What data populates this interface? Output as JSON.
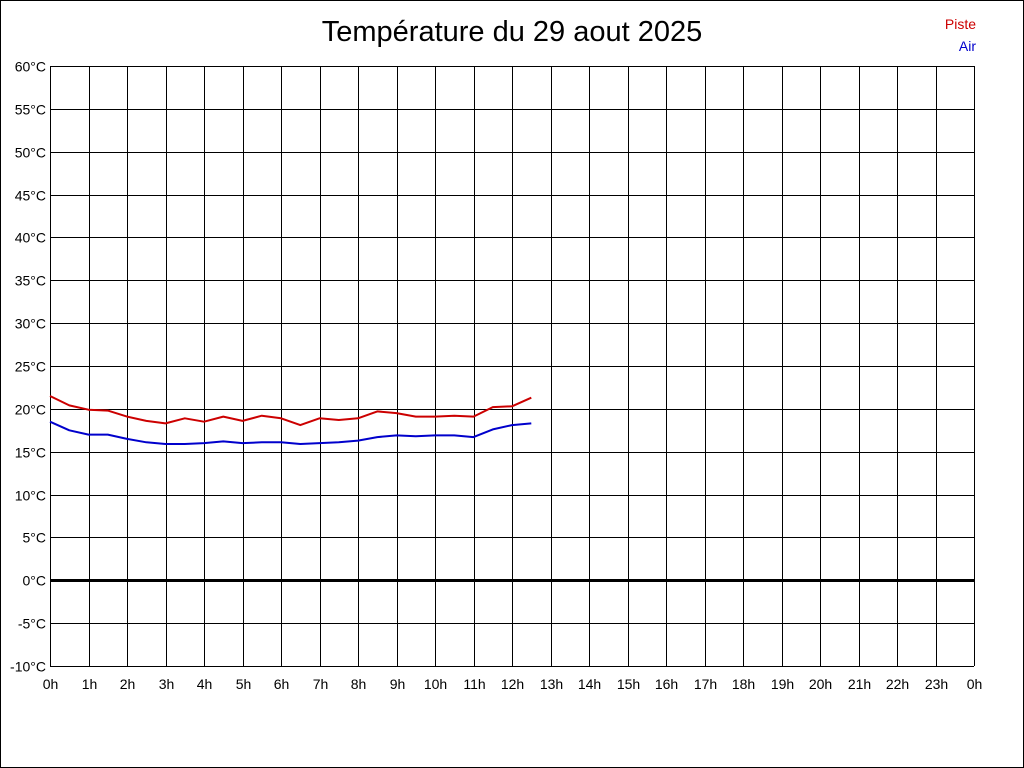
{
  "chart_data": {
    "type": "line",
    "title": "Température du 29 aout 2025",
    "xlabel": "",
    "ylabel": "",
    "ylim": [
      -10,
      60
    ],
    "y_step": 5,
    "y_unit": "°C",
    "x_range_hours": [
      0,
      24
    ],
    "x_tick_labels": [
      "0h",
      "1h",
      "2h",
      "3h",
      "4h",
      "5h",
      "6h",
      "7h",
      "8h",
      "9h",
      "10h",
      "11h",
      "12h",
      "13h",
      "14h",
      "15h",
      "16h",
      "17h",
      "18h",
      "19h",
      "20h",
      "21h",
      "22h",
      "23h",
      "0h"
    ],
    "grid": true,
    "legend_position": "top-right",
    "zero_line": true,
    "x": [
      0,
      0.5,
      1,
      1.5,
      2,
      2.5,
      3,
      3.5,
      4,
      4.5,
      5,
      5.5,
      6,
      6.5,
      7,
      7.5,
      8,
      8.5,
      9,
      9.5,
      10,
      10.5,
      11,
      11.5,
      12,
      12.5
    ],
    "series": [
      {
        "name": "Piste",
        "color": "#cc0000",
        "values": [
          21.5,
          20.4,
          19.9,
          19.8,
          19.1,
          18.6,
          18.3,
          18.9,
          18.5,
          19.1,
          18.6,
          19.2,
          18.9,
          18.1,
          18.9,
          18.7,
          18.9,
          19.7,
          19.5,
          19.1,
          19.1,
          19.2,
          19.1,
          20.2,
          20.3,
          21.3
        ]
      },
      {
        "name": "Air",
        "color": "#0000cc",
        "values": [
          18.5,
          17.5,
          17.0,
          17.0,
          16.5,
          16.1,
          15.9,
          15.9,
          16.0,
          16.2,
          16.0,
          16.1,
          16.1,
          15.9,
          16.0,
          16.1,
          16.3,
          16.7,
          16.9,
          16.8,
          16.9,
          16.9,
          16.7,
          17.6,
          18.1,
          18.3
        ]
      }
    ]
  }
}
